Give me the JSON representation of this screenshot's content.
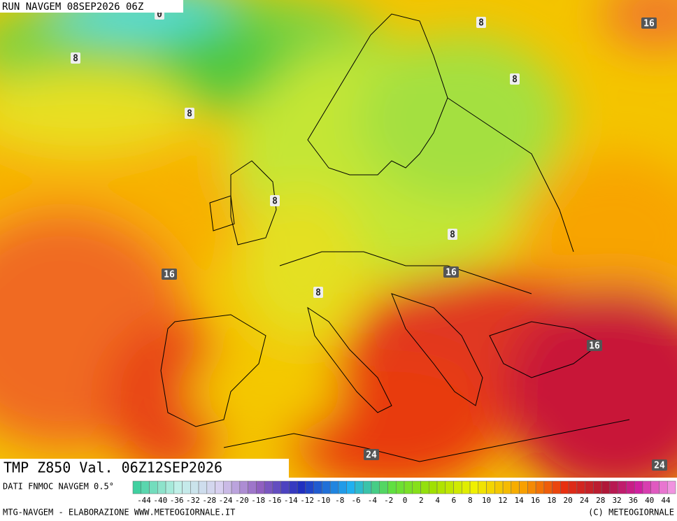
{
  "header": {
    "run": "RUN NAVGEM 08SEP2026 06Z"
  },
  "map": {
    "contour_labels": [
      "0",
      "8",
      "16",
      "8",
      "8",
      "8",
      "8",
      "8",
      "16",
      "16",
      "8",
      "16",
      "24",
      "24"
    ]
  },
  "title": "TMP Z850 Val. 06Z12SEP2026",
  "legend": {
    "source": "DATI FNMOC NAVGEM 0.5°",
    "labels": [
      "-44",
      "-40",
      "-36",
      "-32",
      "-28",
      "-24",
      "-20",
      "-18",
      "-16",
      "-14",
      "-12",
      "-10",
      "-8",
      "-6",
      "-4",
      "-2",
      "0",
      "2",
      "4",
      "6",
      "8",
      "10",
      "12",
      "14",
      "16",
      "18",
      "20",
      "24",
      "28",
      "32",
      "36",
      "40",
      "44"
    ]
  },
  "footer": {
    "left": "MTG-NAVGEM - ELABORAZIONE WWW.METEOGIORNALE.IT",
    "right": "(C) METEOGIORNALE"
  }
}
